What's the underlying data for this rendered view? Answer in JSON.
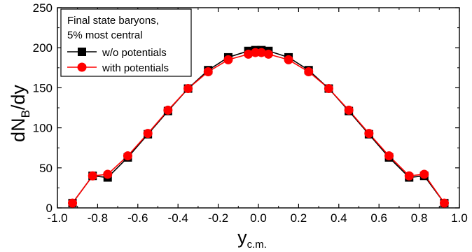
{
  "chart_data": {
    "type": "line",
    "title": "",
    "xlabel": {
      "main": "y",
      "sub": "c.m."
    },
    "ylabel": {
      "main": "dN",
      "sub": "B",
      "tail": "/dy"
    },
    "xlim": [
      -1.0,
      1.0
    ],
    "ylim": [
      0,
      250
    ],
    "xticks": [
      -1.0,
      -0.8,
      -0.6,
      -0.4,
      -0.2,
      0.0,
      0.2,
      0.4,
      0.6,
      0.8,
      1.0
    ],
    "xtick_labels": [
      "-1.0",
      "-0.8",
      "-0.6",
      "-0.4",
      "-0.2",
      "0.0",
      "0.2",
      "0.4",
      "0.6",
      "0.8",
      "1.0"
    ],
    "yticks": [
      0,
      50,
      100,
      150,
      200,
      250
    ],
    "ytick_labels": [
      "0",
      "50",
      "100",
      "150",
      "200",
      "250"
    ],
    "grid": false,
    "legend": {
      "placement": "top-left",
      "header": [
        "Final state baryons,",
        "5% most central"
      ]
    },
    "series": [
      {
        "name": "w/o potentials",
        "color": "#000000",
        "marker": "square",
        "x": [
          -0.925,
          -0.825,
          -0.75,
          -0.65,
          -0.55,
          -0.45,
          -0.35,
          -0.25,
          -0.15,
          -0.05,
          -0.015,
          0.015,
          0.05,
          0.15,
          0.25,
          0.35,
          0.45,
          0.55,
          0.65,
          0.75,
          0.825,
          0.925
        ],
        "y": [
          6,
          40,
          38,
          63,
          92,
          121,
          149,
          172,
          188,
          196,
          197,
          197,
          196,
          188,
          172,
          149,
          121,
          92,
          63,
          38,
          40,
          6
        ]
      },
      {
        "name": "with potentials",
        "color": "#ff0000",
        "marker": "circle",
        "x": [
          -0.925,
          -0.825,
          -0.75,
          -0.65,
          -0.55,
          -0.45,
          -0.35,
          -0.25,
          -0.15,
          -0.05,
          -0.015,
          0.015,
          0.05,
          0.15,
          0.25,
          0.35,
          0.45,
          0.55,
          0.65,
          0.75,
          0.825,
          0.925
        ],
        "y": [
          6,
          40,
          42,
          65,
          93,
          122,
          149,
          170,
          185,
          192,
          194,
          194,
          192,
          185,
          170,
          149,
          122,
          93,
          65,
          40,
          42,
          6
        ]
      }
    ]
  }
}
